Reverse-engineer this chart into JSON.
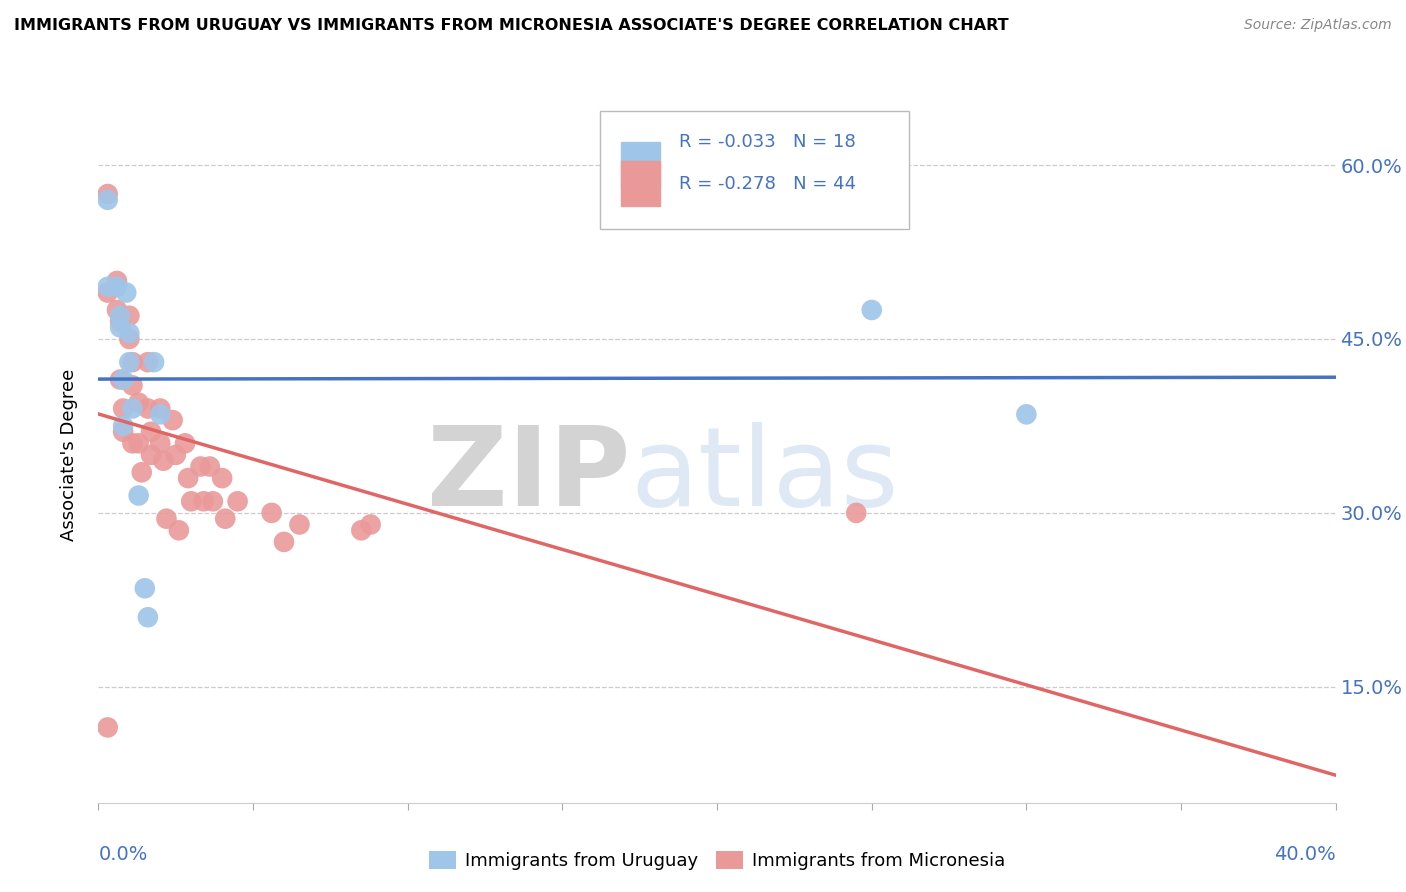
{
  "title": "IMMIGRANTS FROM URUGUAY VS IMMIGRANTS FROM MICRONESIA ASSOCIATE'S DEGREE CORRELATION CHART",
  "source": "Source: ZipAtlas.com",
  "ylabel": "Associate's Degree",
  "xlim": [
    0.0,
    0.4
  ],
  "ylim": [
    0.05,
    0.65
  ],
  "yticks": [
    0.15,
    0.3,
    0.45,
    0.6
  ],
  "ytick_labels": [
    "15.0%",
    "30.0%",
    "45.0%",
    "60.0%"
  ],
  "legend_labels": [
    "Immigrants from Uruguay",
    "Immigrants from Micronesia"
  ],
  "R_uruguay": -0.033,
  "N_uruguay": 18,
  "R_micronesia": -0.278,
  "N_micronesia": 44,
  "color_uruguay": "#9fc5e8",
  "color_micronesia": "#ea9999",
  "line_color_uruguay": "#4472c4",
  "line_color_micronesia": "#e06666",
  "uruguay_x": [
    0.003,
    0.003,
    0.006,
    0.007,
    0.007,
    0.008,
    0.008,
    0.009,
    0.01,
    0.01,
    0.011,
    0.013,
    0.015,
    0.016,
    0.018,
    0.02,
    0.25,
    0.3
  ],
  "uruguay_y": [
    0.57,
    0.495,
    0.495,
    0.47,
    0.46,
    0.415,
    0.375,
    0.49,
    0.455,
    0.43,
    0.39,
    0.315,
    0.235,
    0.21,
    0.43,
    0.385,
    0.475,
    0.385
  ],
  "micronesia_x": [
    0.003,
    0.003,
    0.003,
    0.006,
    0.006,
    0.007,
    0.007,
    0.008,
    0.008,
    0.01,
    0.01,
    0.011,
    0.011,
    0.011,
    0.013,
    0.013,
    0.014,
    0.016,
    0.016,
    0.017,
    0.017,
    0.02,
    0.02,
    0.021,
    0.022,
    0.024,
    0.025,
    0.026,
    0.028,
    0.029,
    0.03,
    0.033,
    0.034,
    0.036,
    0.037,
    0.04,
    0.041,
    0.045,
    0.056,
    0.06,
    0.065,
    0.085,
    0.088,
    0.245
  ],
  "micronesia_y": [
    0.575,
    0.49,
    0.115,
    0.5,
    0.475,
    0.465,
    0.415,
    0.39,
    0.37,
    0.47,
    0.45,
    0.43,
    0.41,
    0.36,
    0.395,
    0.36,
    0.335,
    0.43,
    0.39,
    0.37,
    0.35,
    0.39,
    0.36,
    0.345,
    0.295,
    0.38,
    0.35,
    0.285,
    0.36,
    0.33,
    0.31,
    0.34,
    0.31,
    0.34,
    0.31,
    0.33,
    0.295,
    0.31,
    0.3,
    0.275,
    0.29,
    0.285,
    0.29,
    0.3
  ]
}
